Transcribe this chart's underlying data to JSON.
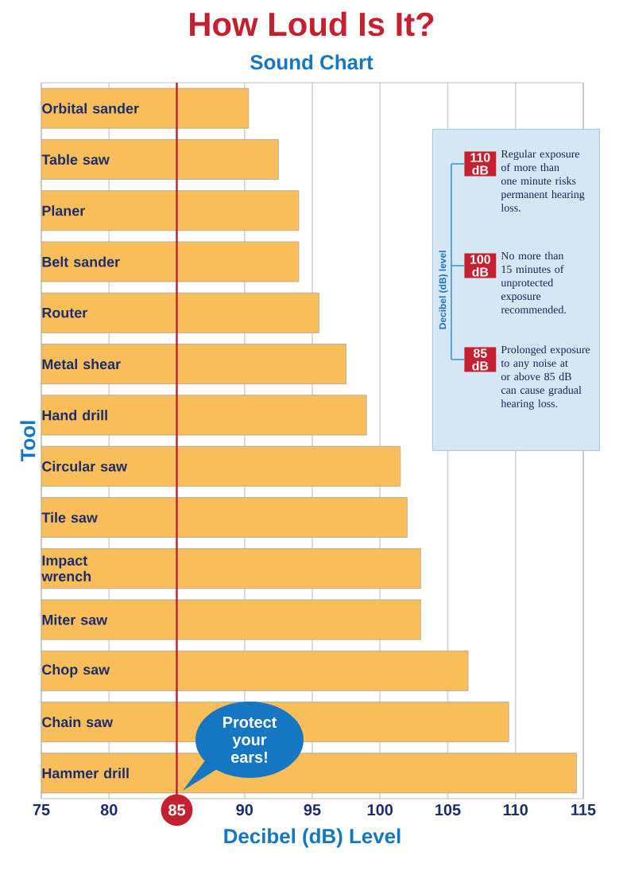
{
  "chart_data": {
    "type": "bar",
    "orientation": "horizontal",
    "title": "How Loud Is It?",
    "subtitle": "Sound Chart",
    "xlabel": "Decibel (dB) Level",
    "ylabel": "Tool",
    "categories": [
      "Orbital sander",
      "Table saw",
      "Planer",
      "Belt sander",
      "Router",
      "Metal shear",
      "Hand drill",
      "Circular saw",
      "Tile saw",
      "Impact wrench",
      "Miter saw",
      "Chop saw",
      "Chain saw",
      "Hammer drill"
    ],
    "values": [
      90.3,
      92.5,
      94,
      94,
      95.5,
      97.5,
      99,
      101.5,
      102,
      103,
      103,
      106.5,
      109.5,
      114.5
    ],
    "color": "#f9be5a",
    "xlim": [
      75,
      115
    ],
    "xticks": [
      75,
      80,
      85,
      90,
      95,
      100,
      105,
      110,
      115
    ],
    "grid": "x",
    "ref_lines": [
      {
        "axis": "x",
        "value": 85,
        "color": "#c0202c"
      }
    ],
    "annotations": [
      "Decibel (dB) level",
      "110 dB",
      "Regular exposure of more than one minute risks permanent hearing loss.",
      "100 dB",
      "No more than 15 minutes of unprotected exposure recommended.",
      "85 dB",
      "Prolonged exposure to any noise at or above 85 dB can cause gradual hearing loss.",
      "Protect your ears!"
    ]
  }
}
